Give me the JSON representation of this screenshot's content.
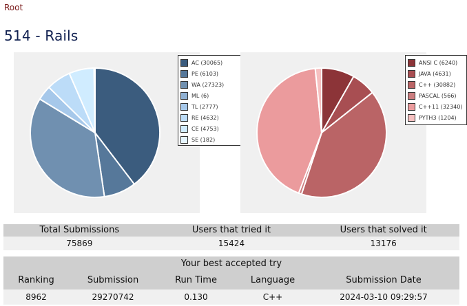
{
  "breadcrumb": "Root",
  "page_title": "514 - Rails",
  "chart_data": [
    {
      "type": "pie",
      "labels": [
        "AC (30065)",
        "PE (6103)",
        "WA (27323)",
        "ML (6)",
        "TL (2777)",
        "RE (4632)",
        "CE (4753)",
        "SE (182)"
      ],
      "values": [
        30065,
        6103,
        27323,
        6,
        2777,
        4632,
        4753,
        182
      ],
      "colors": [
        "#3b5c7e",
        "#56789a",
        "#7090b0",
        "#8fb0d2",
        "#a6c8ea",
        "#bcdcf8",
        "#d0ecff",
        "#e6f6ff"
      ],
      "legend": "right"
    },
    {
      "type": "pie",
      "labels": [
        "ANSI C (6240)",
        "JAVA (4631)",
        "C++ (30882)",
        "PASCAL (566)",
        "C++11 (32340)",
        "PYTH3 (1204)"
      ],
      "values": [
        6240,
        4631,
        30882,
        566,
        32340,
        1204
      ],
      "colors": [
        "#8c3438",
        "#a84e52",
        "#ba6466",
        "#cc7e80",
        "#eb9b9d",
        "#f6c0c0"
      ],
      "legend": "right"
    }
  ],
  "stats": {
    "headers": [
      "Total Submissions",
      "Users that tried it",
      "Users that solved it"
    ],
    "values": [
      "75869",
      "15424",
      "13176"
    ]
  },
  "best_try": {
    "title": "Your best accepted try",
    "headers": [
      "Ranking",
      "Submission",
      "Run Time",
      "Language",
      "Submission Date"
    ],
    "values": [
      "8962",
      "29270742",
      "0.130",
      "C++",
      "2024-03-10 09:29:57"
    ]
  }
}
